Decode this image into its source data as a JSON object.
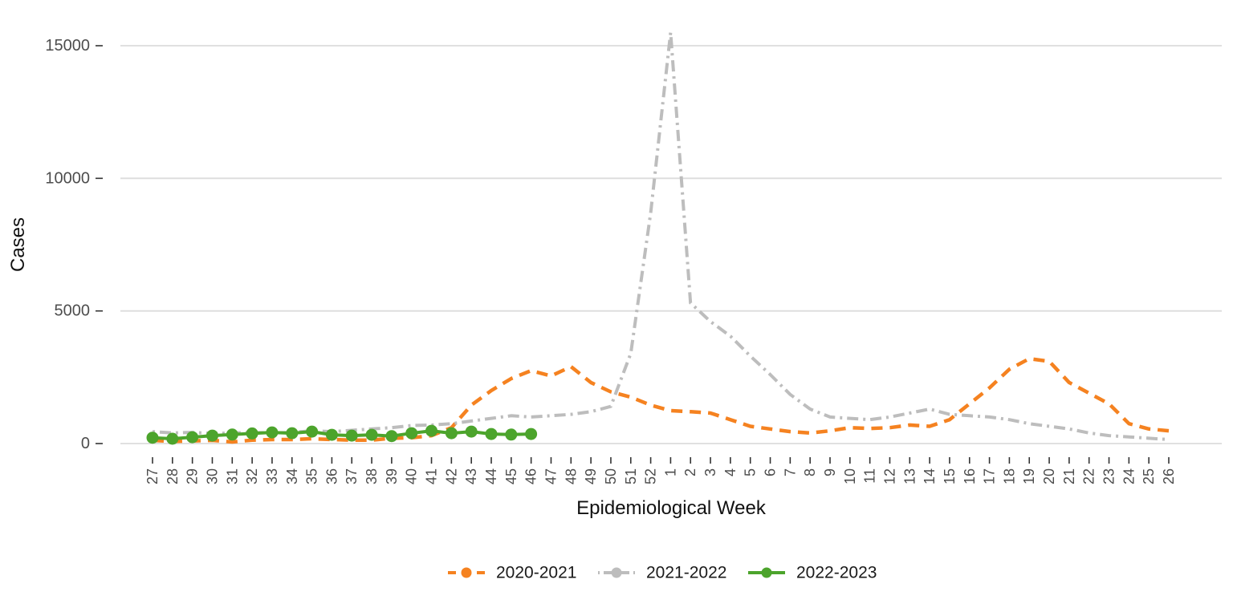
{
  "figure": {
    "background": "#ffffff",
    "gridline_color": "#dcdcdc",
    "tick_color": "#333333",
    "tick_label_color": "#4d4d4d"
  },
  "chart_data": {
    "type": "line",
    "title": "",
    "xlabel": "Epidemiological Week",
    "ylabel": "Cases",
    "x_tick_labels": [
      "27",
      "28",
      "29",
      "30",
      "31",
      "32",
      "33",
      "34",
      "35",
      "36",
      "37",
      "38",
      "39",
      "40",
      "41",
      "42",
      "43",
      "44",
      "45",
      "46",
      "47",
      "48",
      "49",
      "50",
      "51",
      "52",
      "1",
      "2",
      "3",
      "4",
      "5",
      "6",
      "7",
      "8",
      "9",
      "10",
      "11",
      "12",
      "13",
      "14",
      "15",
      "16",
      "17",
      "18",
      "19",
      "20",
      "21",
      "22",
      "23",
      "24",
      "25",
      "26"
    ],
    "y_ticks": [
      0,
      5000,
      10000,
      15000
    ],
    "ylim": [
      0,
      15800
    ],
    "grid": "horizontal-only",
    "legend_position": "bottom-center",
    "series": [
      {
        "name": "2020-2021",
        "color": "#F58220",
        "line_style": "dashed",
        "marker": "none",
        "values": [
          120,
          80,
          100,
          120,
          60,
          130,
          150,
          150,
          180,
          150,
          130,
          130,
          200,
          220,
          300,
          600,
          1450,
          2000,
          2450,
          2750,
          2550,
          2900,
          2300,
          1950,
          1750,
          1450,
          1240,
          1200,
          1150,
          900,
          650,
          550,
          450,
          400,
          480,
          600,
          570,
          600,
          700,
          650,
          900,
          1500,
          2100,
          2800,
          3200,
          3100,
          2300,
          1900,
          1500,
          750,
          550,
          480
        ]
      },
      {
        "name": "2021-2022",
        "color": "#BDBDBD",
        "line_style": "dotdash",
        "marker": "none",
        "values": [
          450,
          400,
          420,
          380,
          400,
          420,
          400,
          420,
          480,
          450,
          500,
          550,
          600,
          680,
          700,
          750,
          850,
          950,
          1050,
          1000,
          1050,
          1100,
          1200,
          1400,
          3400,
          8700,
          15500,
          5300,
          4600,
          4050,
          3300,
          2600,
          1850,
          1300,
          1000,
          950,
          900,
          1000,
          1150,
          1300,
          1100,
          1050,
          1000,
          900,
          750,
          650,
          550,
          400,
          300,
          250,
          200,
          150
        ]
      },
      {
        "name": "2022-2023",
        "color": "#4CA42C",
        "line_style": "solid",
        "marker": "circle",
        "values": [
          220,
          180,
          240,
          300,
          340,
          380,
          420,
          390,
          450,
          330,
          300,
          330,
          280,
          390,
          480,
          390,
          450,
          360,
          340,
          360,
          null,
          null,
          null,
          null,
          null,
          null,
          null,
          null,
          null,
          null,
          null,
          null,
          null,
          null,
          null,
          null,
          null,
          null,
          null,
          null,
          null,
          null,
          null,
          null,
          null,
          null,
          null,
          null,
          null,
          null,
          null,
          null
        ]
      }
    ]
  }
}
